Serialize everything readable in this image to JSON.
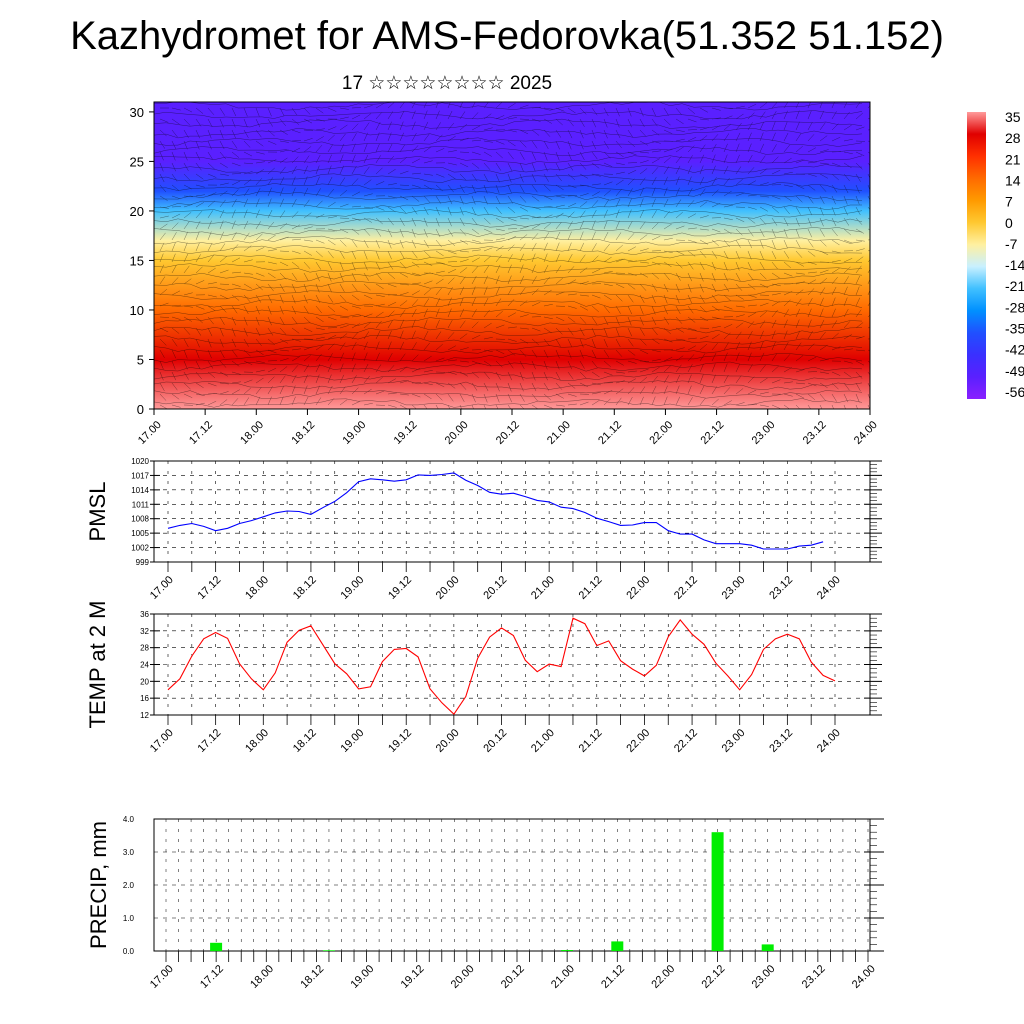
{
  "page": {
    "title": "Kazhydromet for AMS-Fedorovka(51.352 51.152)",
    "subtitle": "17 ☆☆☆☆☆☆☆☆ 2025"
  },
  "colors": {
    "pmsl_line": "#0000ff",
    "temp_line": "#ff0000",
    "precip_bar": "#00ee00"
  },
  "chart_data": [
    {
      "id": "cross_section",
      "type": "heatmap",
      "title": "",
      "x_tick_labels": [
        "17.00",
        "17.12",
        "18.00",
        "18.12",
        "19.00",
        "19.12",
        "20.00",
        "20.12",
        "21.00",
        "21.12",
        "22.00",
        "22.12",
        "23.00",
        "23.12",
        "24.00"
      ],
      "y_tick_labels": [
        "0",
        "5",
        "10",
        "15",
        "20",
        "25",
        "30"
      ],
      "ylim": [
        0,
        31
      ],
      "colorbar_labels": [
        "35",
        "28",
        "21",
        "14",
        "7",
        "0",
        "-7",
        "-14",
        "-21",
        "-28",
        "-35",
        "-42",
        "-49",
        "-56"
      ],
      "colorbar_colors": [
        "#ff9a9a",
        "#e00000",
        "#ff3000",
        "#ff6a00",
        "#ff9a00",
        "#ffc830",
        "#fff0a0",
        "#c8f0ff",
        "#40c0ff",
        "#0090ff",
        "#2050ff",
        "#3a30ff",
        "#5a20ff",
        "#8a20ff"
      ],
      "value_profile": [
        {
          "height": 0,
          "value": 28
        },
        {
          "height": 5,
          "value": 21
        },
        {
          "height": 10,
          "value": 12
        },
        {
          "height": 15,
          "value": -2
        },
        {
          "height": 17,
          "value": -8
        },
        {
          "height": 20,
          "value": -28
        },
        {
          "height": 22,
          "value": -40
        },
        {
          "height": 25,
          "value": -55
        },
        {
          "height": 31,
          "value": -52
        }
      ]
    },
    {
      "id": "pmsl",
      "type": "line",
      "ylabel": "PMSL",
      "ylim": [
        999,
        1020
      ],
      "y_ticks": [
        999,
        1002,
        1005,
        1008,
        1011,
        1014,
        1017,
        1020
      ],
      "x_tick_labels": [
        "17.00",
        "17.12",
        "18.00",
        "18.12",
        "19.00",
        "19.12",
        "20.00",
        "20.12",
        "21.00",
        "21.12",
        "22.00",
        "22.12",
        "23.00",
        "23.12",
        "24.00"
      ],
      "x_step_hours": 3,
      "values": [
        1006,
        1006.6,
        1007,
        1006.4,
        1005.5,
        1006,
        1007,
        1007.6,
        1008.4,
        1009.2,
        1009.6,
        1009.5,
        1008.9,
        1010.3,
        1011.6,
        1013.4,
        1015.7,
        1016.3,
        1016.1,
        1015.8,
        1016.1,
        1017.1,
        1017,
        1017.2,
        1017.5,
        1016,
        1014.9,
        1013.5,
        1013.1,
        1013.3,
        1012.6,
        1011.8,
        1011.5,
        1010.4,
        1010.1,
        1009.3,
        1008.1,
        1007.4,
        1006.6,
        1006.7,
        1007.2,
        1007.2,
        1005.5,
        1004.8,
        1004.8,
        1003.6,
        1002.8,
        1002.8,
        1002.8,
        1002.5,
        1001.7,
        1001.7,
        1001.7,
        1002.3,
        1002.5,
        1003.2
      ]
    },
    {
      "id": "temp2m",
      "type": "line",
      "ylabel": "TEMP at 2 M",
      "ylim": [
        12,
        36
      ],
      "y_ticks": [
        12,
        16,
        20,
        24,
        28,
        32,
        36
      ],
      "x_tick_labels": [
        "17.00",
        "17.12",
        "18.00",
        "18.12",
        "19.00",
        "19.12",
        "20.00",
        "20.12",
        "21.00",
        "21.12",
        "22.00",
        "22.12",
        "23.00",
        "23.12",
        "24.00"
      ],
      "x_step_hours": 3,
      "values": [
        18,
        20.6,
        26,
        30.1,
        31.6,
        30.2,
        24.2,
        20.6,
        18,
        22,
        29.3,
        32.1,
        33.2,
        28.7,
        24.2,
        21.8,
        18.2,
        18.7,
        24.7,
        27.6,
        27.8,
        25.8,
        18.2,
        14.9,
        12.2,
        16.4,
        25.5,
        30.5,
        32.7,
        30.9,
        25,
        22.3,
        24.1,
        23.5,
        35,
        33.7,
        28.5,
        29.6,
        24.9,
        22.9,
        21.3,
        23.8,
        30.6,
        34.6,
        31.2,
        28.8,
        24.3,
        21.3,
        18,
        21.6,
        27.6,
        30.1,
        31.2,
        30.1,
        24.6,
        21.4,
        20.1
      ]
    },
    {
      "id": "precip",
      "type": "bar",
      "ylabel": "PRECIP, mm",
      "ylim": [
        0,
        4
      ],
      "y_ticks": [
        "0.0",
        "1.0",
        "2.0",
        "3.0",
        "4.0"
      ],
      "x_tick_labels": [
        "17.00",
        "17.12",
        "18.00",
        "18.12",
        "19.00",
        "19.12",
        "20.00",
        "20.12",
        "21.00",
        "21.12",
        "22.00",
        "22.12",
        "23.00",
        "23.12",
        "24.00"
      ],
      "bars": [
        {
          "hour": 12,
          "value": 0.25
        },
        {
          "hour": 39,
          "value": 0.02
        },
        {
          "hour": 96,
          "value": 0.03
        },
        {
          "hour": 108,
          "value": 0.29
        },
        {
          "hour": 132,
          "value": 3.6
        },
        {
          "hour": 144,
          "value": 0.2
        }
      ]
    }
  ]
}
